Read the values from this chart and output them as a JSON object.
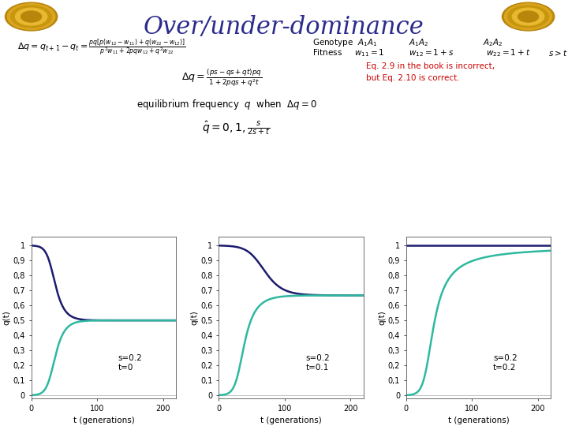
{
  "title": "Over/under-dominance",
  "title_fontsize": 22,
  "title_color": "#2c2c8c",
  "bg_color": "#ffffff",
  "header_stripe1_color": "#2e8b8b",
  "header_stripe2_color": "#7b1f7b",
  "plots": [
    {
      "s": 0.2,
      "t": 0.0,
      "label": "s=0.2\nt=0"
    },
    {
      "s": 0.2,
      "t": 0.1,
      "label": "s=0.2\nt=0.1"
    },
    {
      "s": 0.2,
      "t": 0.2,
      "label": "s=0.2\nt=0.2"
    }
  ],
  "t_max": 220,
  "q0_high": 0.999,
  "q0_low": 0.001,
  "line_color_high": "#1c1c6e",
  "line_color_low": "#2eb8a0",
  "line_width": 1.8,
  "ylabel": "q(t)",
  "xlabel": "t (generations)",
  "yticks": [
    0,
    0.1,
    0.2,
    0.3,
    0.4,
    0.5,
    0.6,
    0.7,
    0.8,
    0.9,
    1
  ],
  "ytick_labels": [
    "0",
    "0,1",
    "0,2",
    "0,3",
    "0,4",
    "0,5",
    "0,6",
    "0,7",
    "0,8",
    "0,9",
    "1"
  ],
  "xticks": [
    0,
    100,
    200
  ],
  "annotation_fontsize": 7.5,
  "axis_fontsize": 7,
  "eq_note_color": "#cc0000"
}
